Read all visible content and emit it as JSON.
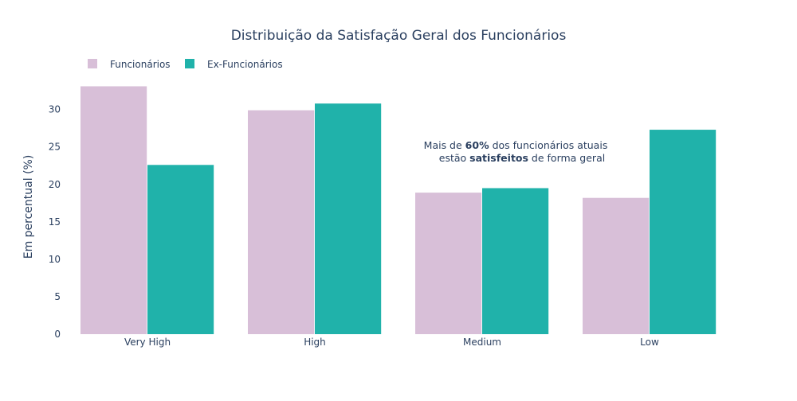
{
  "chart_data": {
    "type": "bar",
    "title": "Distribuição da Satisfação Geral dos Funcionários",
    "xlabel": "",
    "ylabel": "Em percentual (%)",
    "ylim": [
      0,
      34
    ],
    "yticks": [
      0,
      5,
      10,
      15,
      20,
      25,
      30
    ],
    "categories": [
      "Very High",
      "High",
      "Medium",
      "Low"
    ],
    "series": [
      {
        "name": "Funcionários",
        "color": "#d8bfd8",
        "values": [
          33.1,
          29.9,
          18.9,
          18.2
        ]
      },
      {
        "name": "Ex-Funcionários",
        "color": "#20b2aa",
        "values": [
          22.6,
          30.8,
          19.5,
          27.3
        ]
      }
    ],
    "legend_position": "top-left, horizontal",
    "grid": false,
    "annotation": {
      "line1_pre": "Mais de ",
      "line1_bold": "60%",
      "line1_post": " dos funcionários atuais",
      "line2_pre": "estão ",
      "line2_bold": "satisfeitos",
      "line2_post": " de forma geral"
    },
    "colors": {
      "text": "#2a3f5f",
      "background": "#ffffff"
    }
  }
}
